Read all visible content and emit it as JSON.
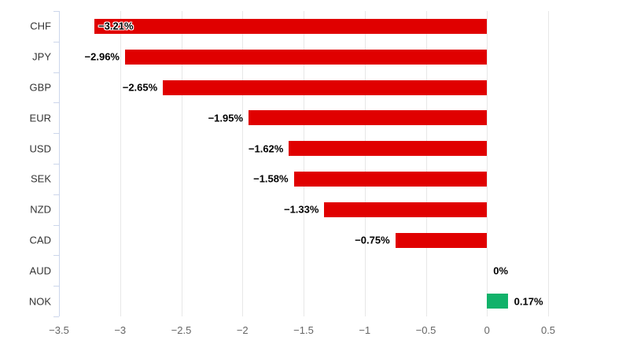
{
  "chart_data": {
    "type": "bar",
    "orientation": "horizontal",
    "title": "",
    "xlabel": "",
    "ylabel": "",
    "categories": [
      "CHF",
      "JPY",
      "GBP",
      "EUR",
      "USD",
      "SEK",
      "NZD",
      "CAD",
      "AUD",
      "NOK"
    ],
    "values": [
      -3.21,
      -2.96,
      -2.65,
      -1.95,
      -1.62,
      -1.58,
      -1.33,
      -0.75,
      0,
      0.17
    ],
    "data_labels": [
      "−3.21%",
      "−2.96%",
      "−2.65%",
      "−1.95%",
      "−1.62%",
      "−1.58%",
      "−1.33%",
      "−0.75%",
      "0%",
      "0.17%"
    ],
    "label_inside": [
      true,
      false,
      false,
      false,
      false,
      false,
      false,
      false,
      false,
      false
    ],
    "xlim": [
      -3.5,
      0.5
    ],
    "x_ticks": {
      "values": [
        -3.5,
        -3,
        -2.5,
        -2,
        -1.5,
        -1,
        -0.5,
        0,
        0.5
      ],
      "labels": [
        "−3.5",
        "−3",
        "−2.5",
        "−2",
        "−1.5",
        "−1",
        "−0.5",
        "0",
        "0.5"
      ]
    },
    "grid": true,
    "legend": "none",
    "colors": {
      "negative_bar": "#e00000",
      "positive_bar": "#11b26a",
      "gridline": "#e7e7e7",
      "axis_line": "#ccd6eb",
      "category_label": "#333333",
      "tick_label": "#666666",
      "data_label": "#000000",
      "background": "#ffffff"
    }
  }
}
